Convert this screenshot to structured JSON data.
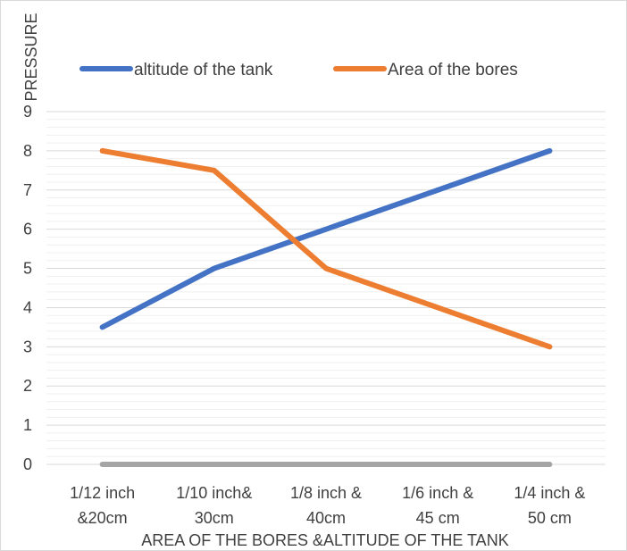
{
  "chart_data": {
    "type": "line",
    "title": "",
    "xlabel": "AREA OF THE BORES &ALTITUDE OF THE TANK",
    "ylabel": "PRESSURE",
    "categories": [
      [
        "1/12 inch",
        "&20cm"
      ],
      [
        "1/10 inch&",
        "30cm"
      ],
      [
        "1/8 inch &",
        "40cm"
      ],
      [
        "1/6 inch &",
        "45 cm"
      ],
      [
        "1/4 inch &",
        "50 cm"
      ]
    ],
    "ylim": [
      0,
      9
    ],
    "yticks": [
      0,
      1,
      2,
      3,
      4,
      5,
      6,
      7,
      8,
      9
    ],
    "grid": true,
    "minor_grid": true,
    "legend_position": "top",
    "series": [
      {
        "name": "altitude of the tank",
        "values": [
          3.5,
          5,
          6,
          7,
          8
        ],
        "color": "#4472C4"
      },
      {
        "name": "Area of the bores",
        "values": [
          8,
          7.5,
          5,
          4,
          3
        ],
        "color": "#ED7D31"
      },
      {
        "name": "",
        "values": [
          0,
          0,
          0,
          0,
          0
        ],
        "color": "#A5A5A5"
      }
    ]
  }
}
